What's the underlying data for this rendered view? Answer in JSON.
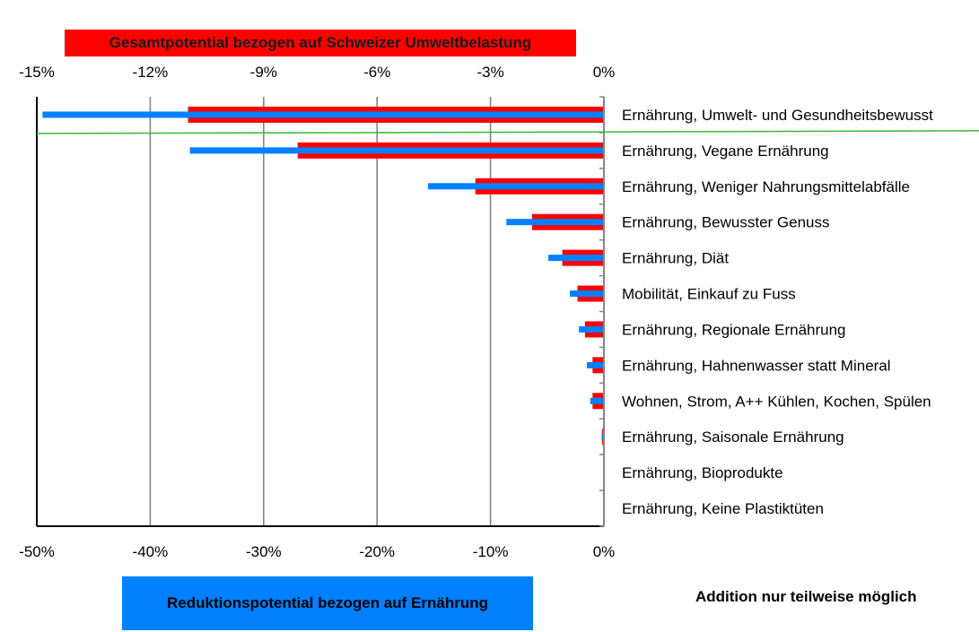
{
  "chart_data": {
    "type": "bar",
    "orientation": "horizontal",
    "title_top": "Gesamtpotential bezogen auf Schweizer Umweltbelastung",
    "title_bottom": "Reduktionspotential bezogen auf Ernährung",
    "note": "Addition nur teilweise möglich",
    "top_axis": {
      "ticks": [
        "-15%",
        "-12%",
        "-9%",
        "-6%",
        "-3%",
        "0%"
      ],
      "range": [
        -15,
        0
      ],
      "unit": "%"
    },
    "bottom_axis": {
      "ticks": [
        "-50%",
        "-40%",
        "-30%",
        "-20%",
        "-10%",
        "0%"
      ],
      "range": [
        -50,
        0
      ],
      "unit": "%"
    },
    "categories": [
      "Ernährung, Umwelt- und Gesundheitsbewusst",
      "Ernährung, Vegane Ernährung",
      "Ernährung, Weniger Nahrungsmittelabfälle",
      "Ernährung, Bewusster Genuss",
      "Ernährung, Diät",
      "Mobilität, Einkauf zu Fuss",
      "Ernährung, Regionale Ernährung",
      "Ernährung, Hahnenwasser statt Mineral",
      "Wohnen, Strom, A++ Kühlen, Kochen, Spülen",
      "Ernährung, Saisonale Ernährung",
      "Ernährung, Bioprodukte",
      "Ernährung, Keine Plastiktüten"
    ],
    "series": [
      {
        "name": "Gesamtpotential bezogen auf Schweizer Umweltbelastung",
        "axis": "top",
        "color": "#ff0000",
        "values": [
          -11.0,
          -8.1,
          -3.4,
          -1.9,
          -1.1,
          -0.7,
          -0.5,
          -0.3,
          -0.3,
          -0.05,
          0,
          0
        ]
      },
      {
        "name": "Reduktionspotential bezogen auf Ernährung",
        "axis": "bottom",
        "color": "#0080ff",
        "values": [
          -49.5,
          -36.5,
          -15.5,
          -8.6,
          -4.9,
          -3.0,
          -2.2,
          -1.5,
          -1.2,
          -0.2,
          0,
          0
        ]
      }
    ],
    "reference_line": {
      "color": "#33bb33"
    },
    "grid": true,
    "gridlines": "vertical"
  }
}
